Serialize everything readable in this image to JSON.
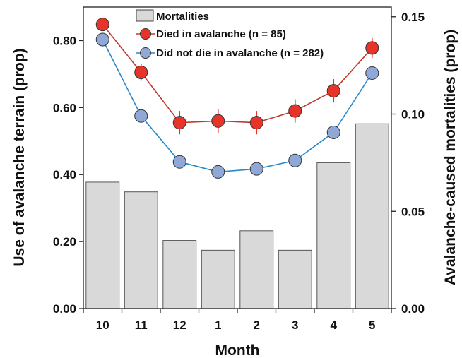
{
  "chart_data": {
    "type": "bar+line",
    "x": [
      "10",
      "11",
      "12",
      "1",
      "2",
      "3",
      "4",
      "5"
    ],
    "xlabel": "Month",
    "ylabel_left": "Use of avalanche terrain (prop)",
    "ylabel_right": "Avalanche-caused mortalities (prop)",
    "ylim_left": [
      0,
      0.9
    ],
    "yticks_left": [
      "0.00",
      "0.20",
      "0.40",
      "0.60",
      "0.80"
    ],
    "ylim_right": [
      0,
      0.155
    ],
    "yticks_right": [
      "0.00",
      "0.05",
      "0.10",
      "0.15"
    ],
    "bars": {
      "name": "Mortalities",
      "axis": "right",
      "values": [
        0.065,
        0.06,
        0.035,
        0.03,
        0.04,
        0.03,
        0.075,
        0.095
      ],
      "color": "#d9d9d9"
    },
    "series": [
      {
        "name": "Died in avalanche (n = 85)",
        "axis": "left",
        "values": [
          0.848,
          0.705,
          0.555,
          0.56,
          0.555,
          0.59,
          0.65,
          0.778
        ],
        "error": [
          0,
          0.025,
          0.035,
          0.035,
          0.035,
          0.035,
          0.035,
          0.03
        ],
        "color": "#e8332a",
        "line_color": "#c0392b"
      },
      {
        "name": "Did not die in avalanche (n = 282)",
        "axis": "left",
        "values": [
          0.803,
          0.575,
          0.438,
          0.408,
          0.417,
          0.442,
          0.526,
          0.703
        ],
        "error": [
          0,
          0,
          0,
          0,
          0,
          0.015,
          0.01,
          0
        ],
        "color": "#8fa8d8",
        "line_color": "#2b88c8"
      }
    ],
    "legend": "top-center",
    "grid": false
  }
}
